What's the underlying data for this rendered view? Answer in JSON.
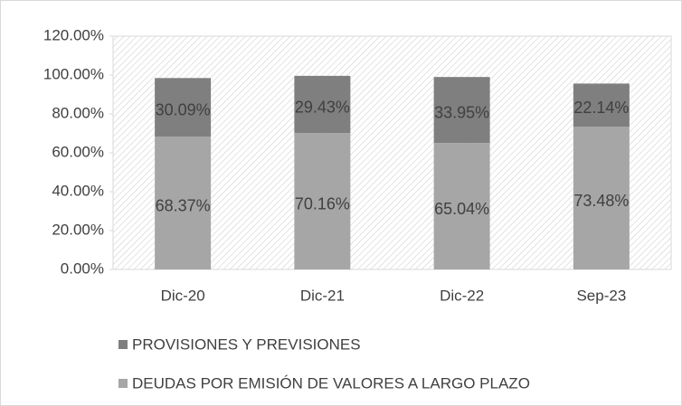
{
  "chart_data": {
    "type": "bar",
    "stacked": true,
    "categories": [
      "Dic-20",
      "Dic-21",
      "Dic-22",
      "Sep-23"
    ],
    "series": [
      {
        "name": "DEUDAS POR EMISIÓN DE VALORES A LARGO PLAZO",
        "color": "#a6a6a6",
        "values": [
          68.37,
          70.16,
          65.04,
          73.48
        ],
        "value_labels": [
          "68.37%",
          "70.16%",
          "65.04%",
          "73.48%"
        ]
      },
      {
        "name": "PROVISIONES Y PREVISIONES",
        "color": "#7f7f7f",
        "values": [
          30.09,
          29.43,
          33.95,
          22.14
        ],
        "value_labels": [
          "30.09%",
          "29.43%",
          "33.95%",
          "22.14%"
        ]
      }
    ],
    "ylim": [
      0,
      120
    ],
    "yticks": [
      {
        "value": 0,
        "label": "0.00%"
      },
      {
        "value": 20,
        "label": "20.00%"
      },
      {
        "value": 40,
        "label": "40.00%"
      },
      {
        "value": 60,
        "label": "60.00%"
      },
      {
        "value": 80,
        "label": "80.00%"
      },
      {
        "value": 100,
        "label": "100.00%"
      },
      {
        "value": 120,
        "label": "120.00%"
      }
    ],
    "legend": "bottom-left"
  }
}
